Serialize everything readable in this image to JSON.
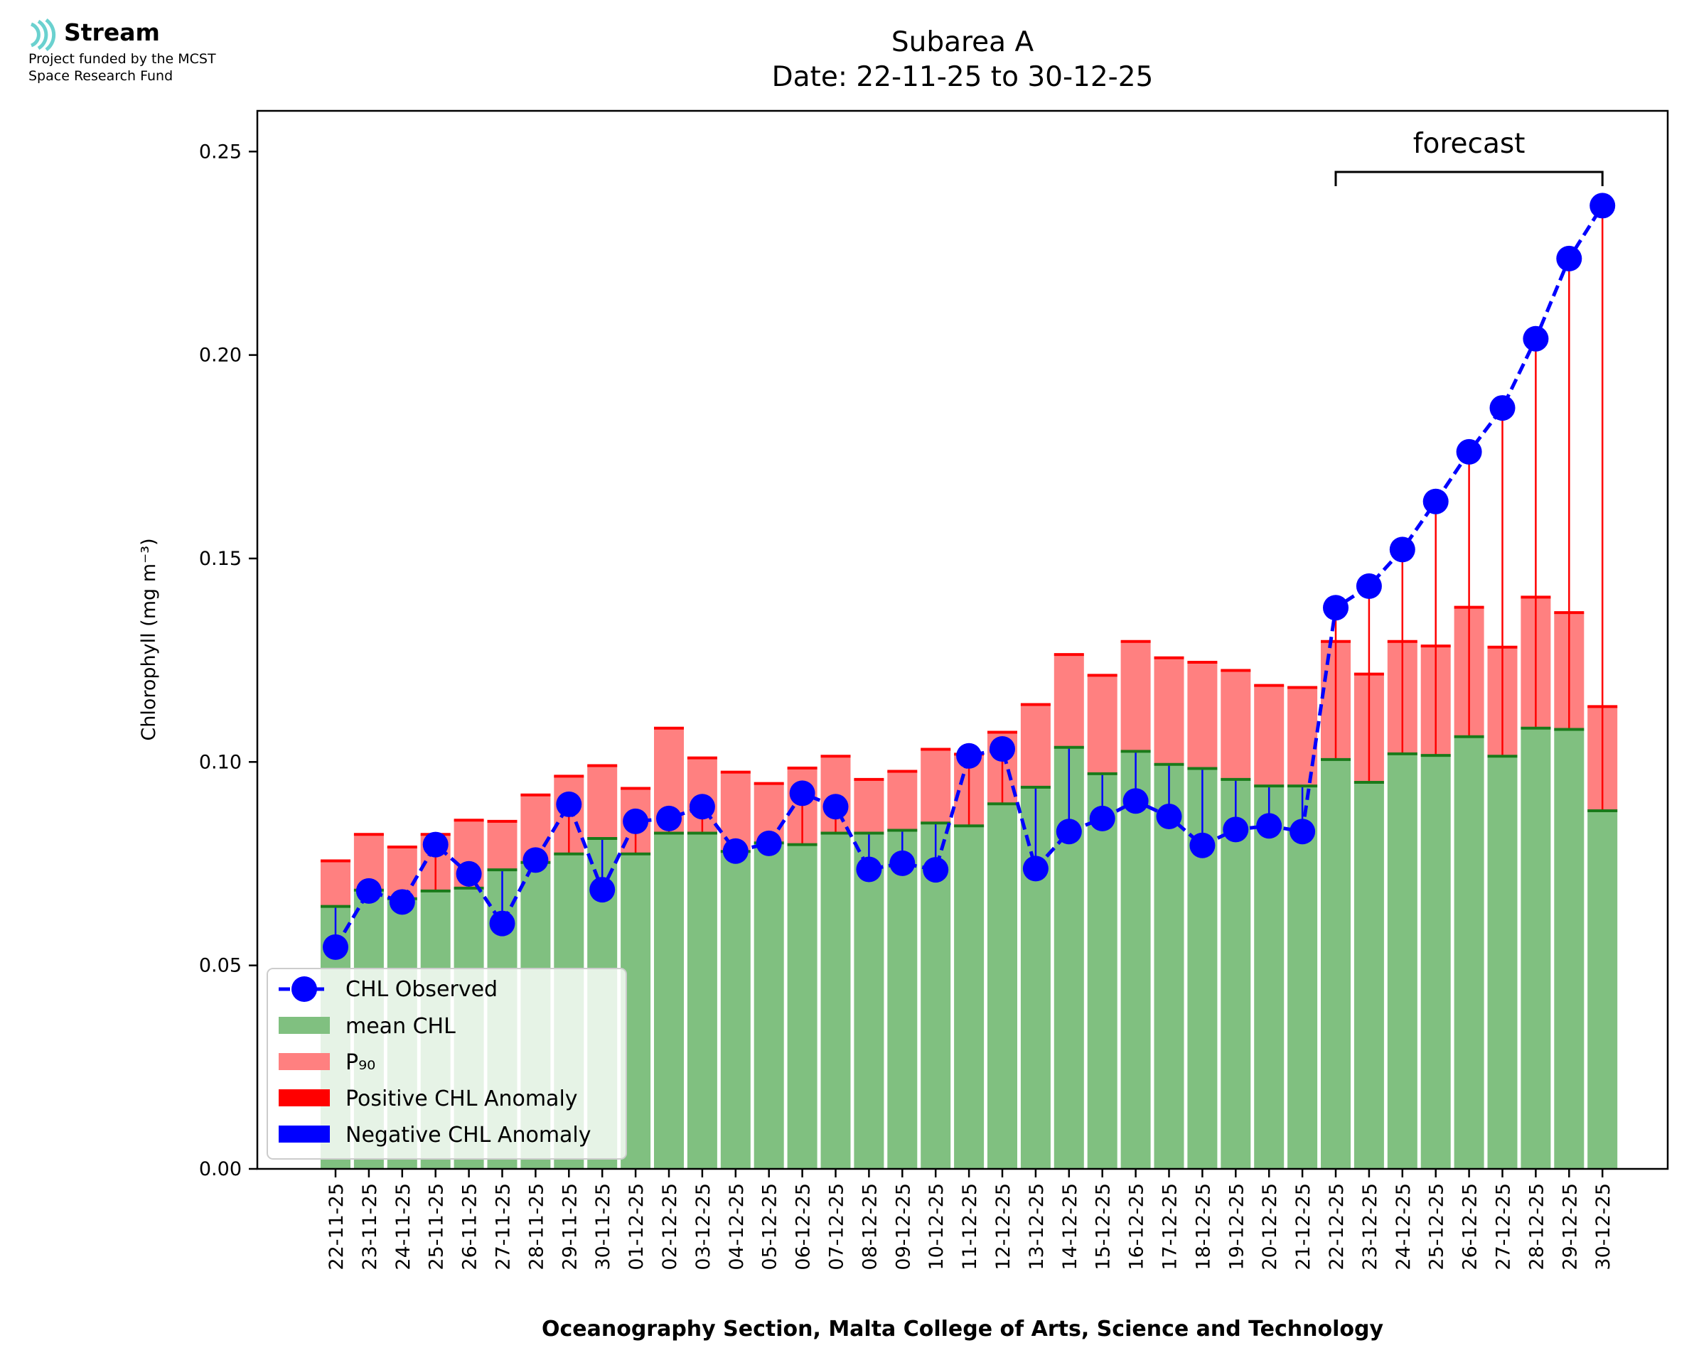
{
  "logo": {
    "name": "Stream",
    "line1": "Project funded by the MCST",
    "line2": "Space Research Fund",
    "color": "#6ad1cf"
  },
  "chart_data": {
    "type": "bar",
    "title": "Subarea A",
    "subtitle": "Date: 22-11-25 to 30-12-25",
    "xlabel": "Oceanography Section, Malta College of Arts, Science and Technology",
    "ylabel": "Chlorophyll (mg m⁻³)",
    "ylim": [
      0,
      0.26
    ],
    "yticks": [
      0.0,
      0.05,
      0.1,
      0.15,
      0.2,
      0.25
    ],
    "grid": false,
    "legend_position": "lower-left",
    "forecast_label": "forecast",
    "forecast_range": [
      "22-12-25",
      "30-12-25"
    ],
    "categories": [
      "22-11-25",
      "23-11-25",
      "24-11-25",
      "25-11-25",
      "26-11-25",
      "27-11-25",
      "28-11-25",
      "29-11-25",
      "30-11-25",
      "01-12-25",
      "02-12-25",
      "03-12-25",
      "04-12-25",
      "05-12-25",
      "06-12-25",
      "07-12-25",
      "08-12-25",
      "09-12-25",
      "10-12-25",
      "11-12-25",
      "12-12-25",
      "13-12-25",
      "14-12-25",
      "15-12-25",
      "16-12-25",
      "17-12-25",
      "18-12-25",
      "19-12-25",
      "20-12-25",
      "21-12-25",
      "22-12-25",
      "23-12-25",
      "24-12-25",
      "25-12-25",
      "26-12-25",
      "27-12-25",
      "28-12-25",
      "29-12-25",
      "30-12-25"
    ],
    "series": [
      {
        "name": "CHL Observed",
        "color": "#0000ff",
        "values": [
          0.0545,
          0.0683,
          0.0656,
          0.0797,
          0.0725,
          0.0603,
          0.0759,
          0.0896,
          0.0686,
          0.0854,
          0.0861,
          0.089,
          0.0781,
          0.08,
          0.0923,
          0.089,
          0.0736,
          0.0751,
          0.0735,
          0.1015,
          0.1032,
          0.0738,
          0.0829,
          0.0861,
          0.0904,
          0.0866,
          0.0795,
          0.0834,
          0.0843,
          0.0829,
          0.1379,
          0.1432,
          0.1522,
          0.164,
          0.1762,
          0.187,
          0.204,
          0.2237,
          0.2367
        ]
      },
      {
        "name": "mean CHL",
        "color": "#80c080",
        "values": [
          0.0645,
          0.0685,
          0.0664,
          0.0683,
          0.069,
          0.0735,
          0.0753,
          0.0774,
          0.0812,
          0.0774,
          0.0825,
          0.0825,
          0.078,
          0.0801,
          0.0797,
          0.0825,
          0.0825,
          0.0832,
          0.085,
          0.0843,
          0.0897,
          0.0938,
          0.1036,
          0.0971,
          0.1026,
          0.0994,
          0.0984,
          0.0957,
          0.0941,
          0.0941,
          0.1006,
          0.095,
          0.102,
          0.1016,
          0.1062,
          0.1014,
          0.1083,
          0.108,
          0.088
        ]
      },
      {
        "name": "P₉₀",
        "color": "#ff8080",
        "values": [
          0.0757,
          0.0822,
          0.0791,
          0.0822,
          0.0857,
          0.0854,
          0.0919,
          0.0965,
          0.0991,
          0.0935,
          0.1083,
          0.101,
          0.0975,
          0.0947,
          0.0985,
          0.1014,
          0.0957,
          0.0977,
          0.1031,
          0.1019,
          0.1073,
          0.1141,
          0.1264,
          0.1213,
          0.1296,
          0.1256,
          0.1245,
          0.1225,
          0.1188,
          0.1183,
          0.1296,
          0.1216,
          0.1296,
          0.1285,
          0.138,
          0.1282,
          0.1405,
          0.1367,
          0.1136
        ]
      }
    ],
    "anomaly_legend": [
      {
        "name": "Positive CHL Anomaly",
        "color": "#ff0000"
      },
      {
        "name": "Negative CHL Anomaly",
        "color": "#0000ff"
      }
    ]
  }
}
